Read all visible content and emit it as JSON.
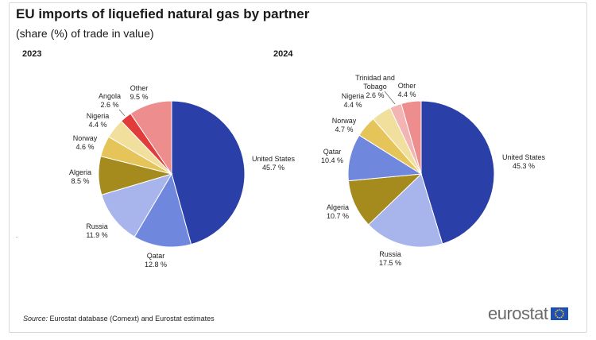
{
  "title": "EU imports of liquefied natural gas by partner",
  "subtitle": "(share (%) of trade in value)",
  "source_label": "Source:",
  "source_text": "Eurostat database (Comext) and Eurostat estimates",
  "logo_text": "eurostat",
  "chart_data": [
    {
      "type": "pie",
      "title": "2023",
      "slices": [
        {
          "label": "United States",
          "value": 45.7,
          "value_text": "45.7 %",
          "color": "#2b3fa8"
        },
        {
          "label": "Qatar",
          "value": 12.8,
          "value_text": "12.8 %",
          "color": "#6f87dd"
        },
        {
          "label": "Russia",
          "value": 11.9,
          "value_text": "11.9 %",
          "color": "#a7b5ec"
        },
        {
          "label": "Algeria",
          "value": 8.5,
          "value_text": "8.5 %",
          "color": "#a58a1e"
        },
        {
          "label": "Norway",
          "value": 4.6,
          "value_text": "4.6 %",
          "color": "#e5c45a"
        },
        {
          "label": "Nigeria",
          "value": 4.4,
          "value_text": "4.4 %",
          "color": "#f1df9e"
        },
        {
          "label": "Angola",
          "value": 2.6,
          "value_text": "2.6 %",
          "color": "#e23b3b"
        },
        {
          "label": "Other",
          "value": 9.5,
          "value_text": "9.5 %",
          "color": "#ee8d8d"
        }
      ]
    },
    {
      "type": "pie",
      "title": "2024",
      "slices": [
        {
          "label": "United States",
          "value": 45.3,
          "value_text": "45.3 %",
          "color": "#2b3fa8"
        },
        {
          "label": "Russia",
          "value": 17.5,
          "value_text": "17.5 %",
          "color": "#a7b5ec"
        },
        {
          "label": "Algeria",
          "value": 10.7,
          "value_text": "10.7 %",
          "color": "#a58a1e"
        },
        {
          "label": "Qatar",
          "value": 10.4,
          "value_text": "10.4 %",
          "color": "#6f87dd"
        },
        {
          "label": "Norway",
          "value": 4.7,
          "value_text": "4.7 %",
          "color": "#e5c45a"
        },
        {
          "label": "Nigeria",
          "value": 4.4,
          "value_text": "4.4 %",
          "color": "#f1df9e"
        },
        {
          "label": "Trinidad and Tobago",
          "value": 2.6,
          "value_text": "2.6 %",
          "color": "#f3b4b4"
        },
        {
          "label": "Other",
          "value": 4.4,
          "value_text": "4.4 %",
          "color": "#ee8d8d"
        }
      ]
    }
  ]
}
